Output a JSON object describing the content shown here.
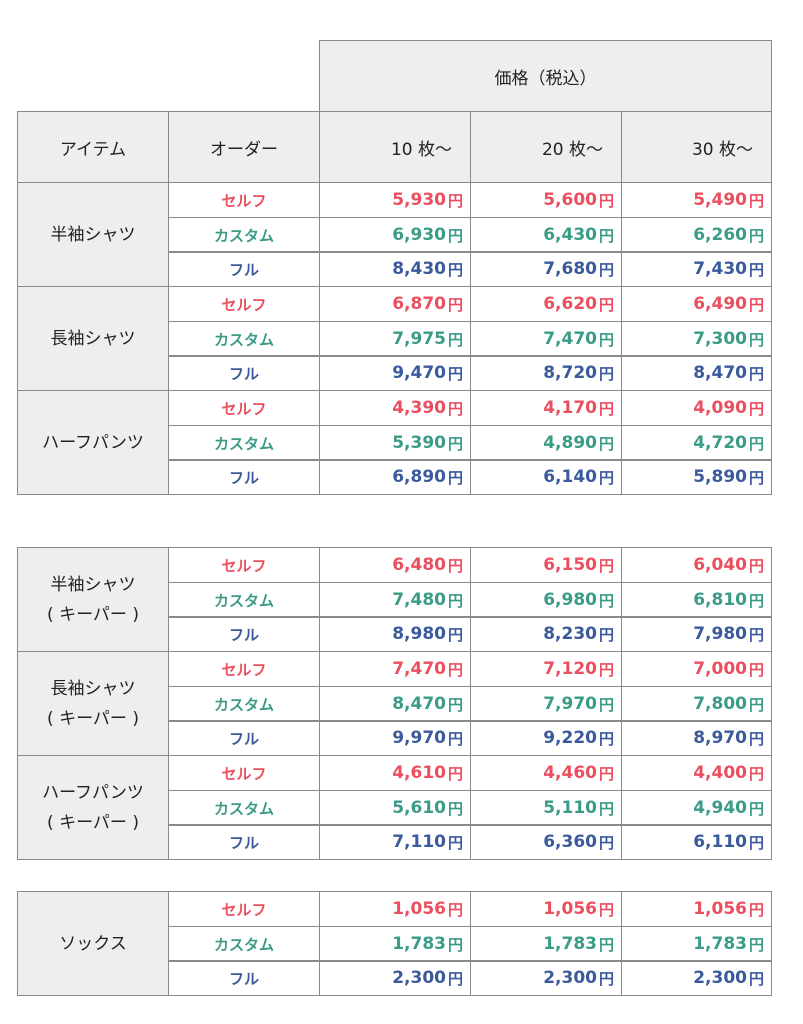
{
  "header": {
    "price_group": "価格（税込）",
    "item": "アイテム",
    "order": "オーダー",
    "qty": [
      "10 枚〜",
      "20 枚〜",
      "30 枚〜"
    ]
  },
  "yen": "円",
  "order_labels": {
    "self": "セルフ",
    "custom": "カスタム",
    "full": "フル"
  },
  "colors": {
    "self": "#e94f5f",
    "custom": "#3a9b86",
    "full": "#3b5a9c",
    "header_bg": "#eeeeee",
    "border": "#8a8a8a"
  },
  "sections": [
    {
      "items": [
        {
          "name": "半袖シャツ",
          "rows": [
            [
              "5,930",
              "5,600",
              "5,490"
            ],
            [
              "6,930",
              "6,430",
              "6,260"
            ],
            [
              "8,430",
              "7,680",
              "7,430"
            ]
          ]
        },
        {
          "name": "長袖シャツ",
          "rows": [
            [
              "6,870",
              "6,620",
              "6,490"
            ],
            [
              "7,975",
              "7,470",
              "7,300"
            ],
            [
              "9,470",
              "8,720",
              "8,470"
            ]
          ]
        },
        {
          "name": "ハーフパンツ",
          "rows": [
            [
              "4,390",
              "4,170",
              "4,090"
            ],
            [
              "5,390",
              "4,890",
              "4,720"
            ],
            [
              "6,890",
              "6,140",
              "5,890"
            ]
          ]
        }
      ]
    },
    {
      "items": [
        {
          "name": "半袖シャツ\n( キーパー )",
          "rows": [
            [
              "6,480",
              "6,150",
              "6,040"
            ],
            [
              "7,480",
              "6,980",
              "6,810"
            ],
            [
              "8,980",
              "8,230",
              "7,980"
            ]
          ]
        },
        {
          "name": "長袖シャツ\n( キーパー )",
          "rows": [
            [
              "7,470",
              "7,120",
              "7,000"
            ],
            [
              "8,470",
              "7,970",
              "7,800"
            ],
            [
              "9,970",
              "9,220",
              "8,970"
            ]
          ]
        },
        {
          "name": "ハーフパンツ\n( キーパー )",
          "rows": [
            [
              "4,610",
              "4,460",
              "4,400"
            ],
            [
              "5,610",
              "5,110",
              "4,940"
            ],
            [
              "7,110",
              "6,360",
              "6,110"
            ]
          ]
        }
      ]
    },
    {
      "items": [
        {
          "name": "ソックス",
          "rows": [
            [
              "1,056",
              "1,056",
              "1,056"
            ],
            [
              "1,783",
              "1,783",
              "1,783"
            ],
            [
              "2,300",
              "2,300",
              "2,300"
            ]
          ]
        }
      ]
    }
  ]
}
